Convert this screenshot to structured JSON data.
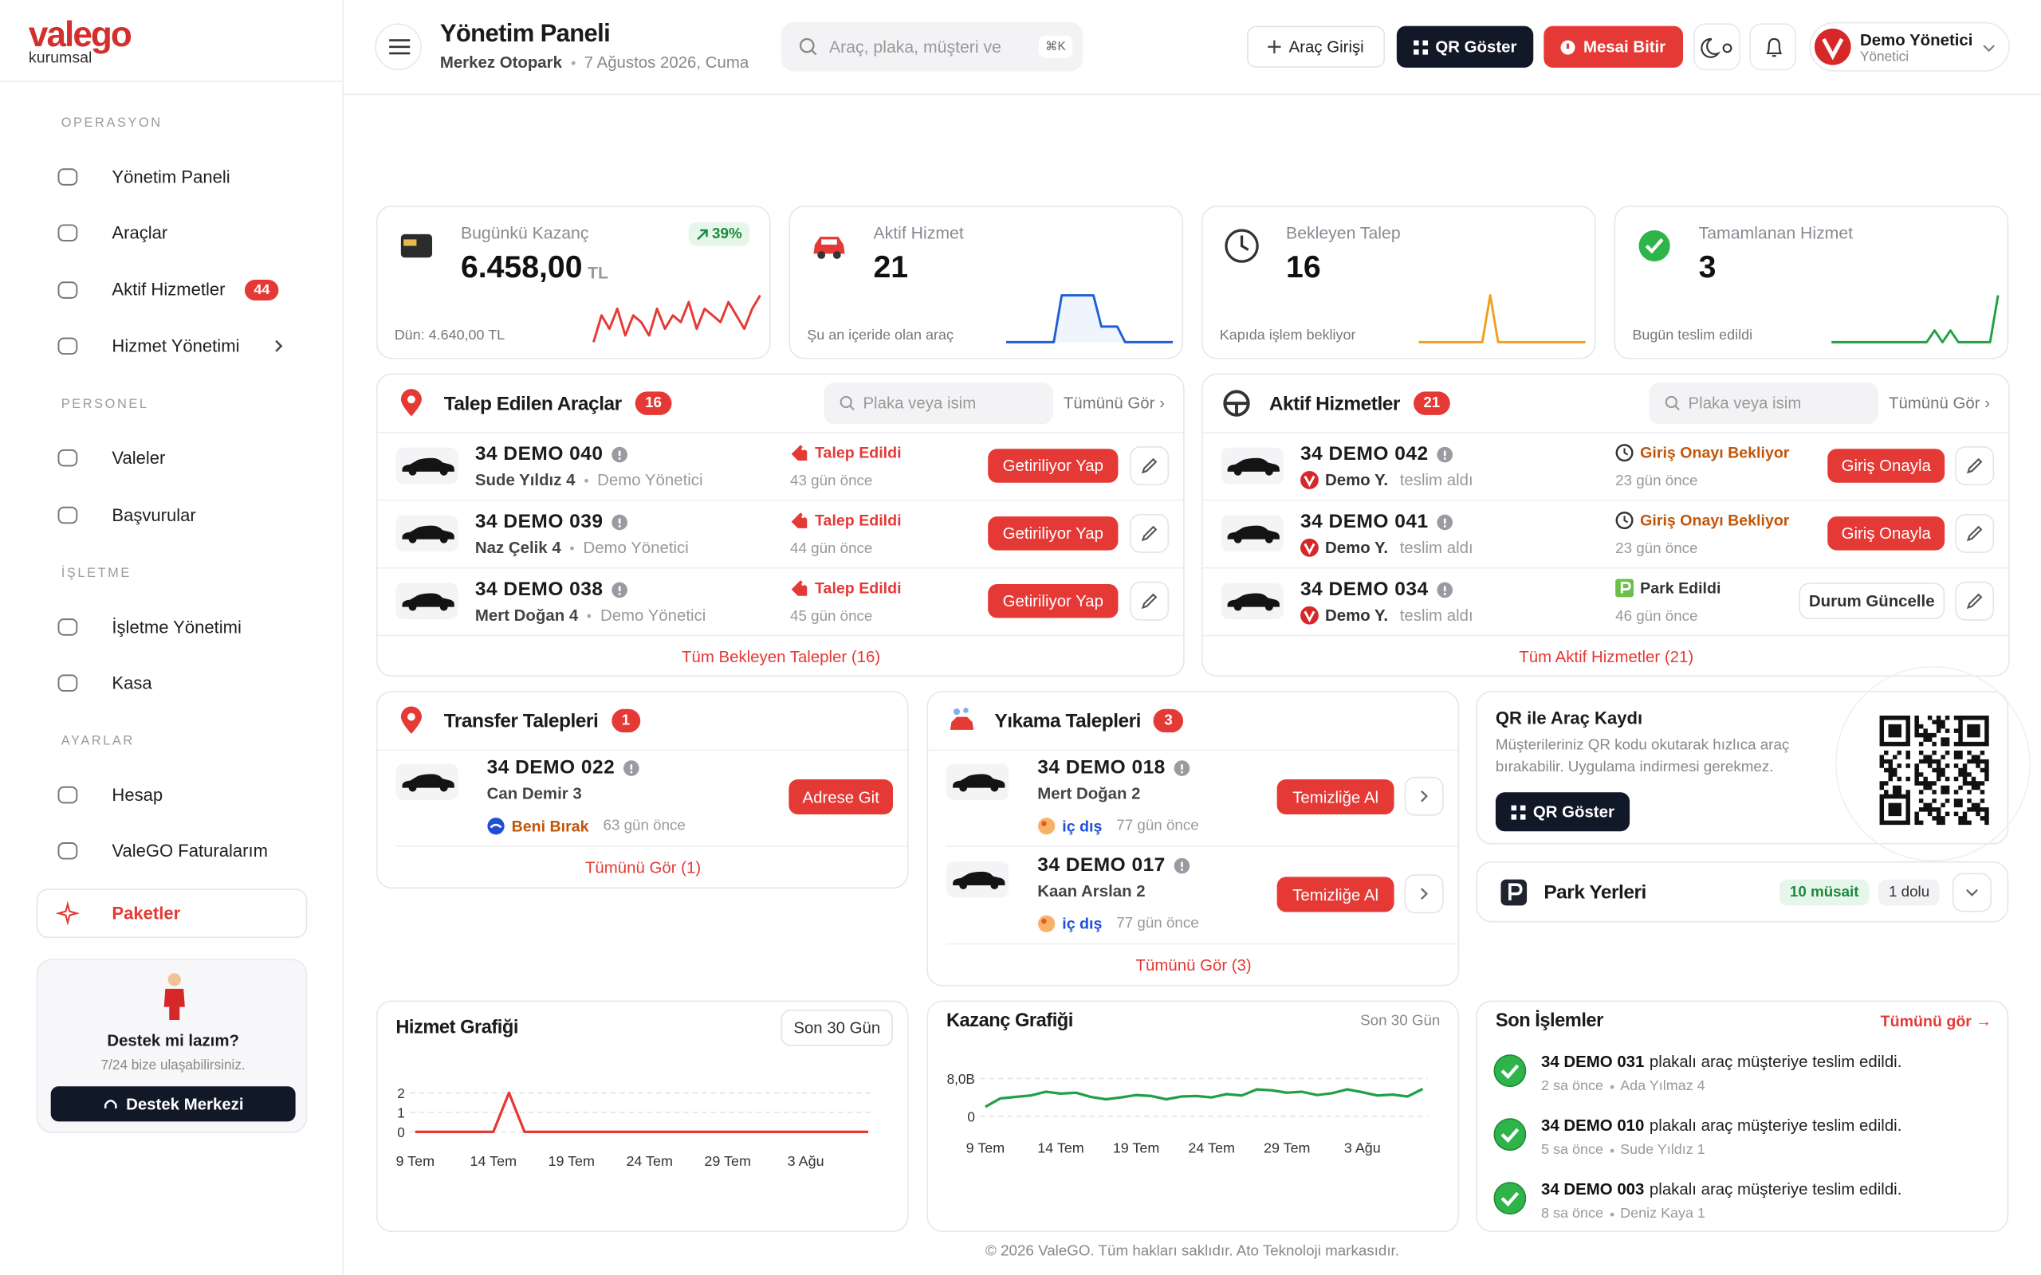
{
  "brand": {
    "name": "valego",
    "tagline": "kurumsal"
  },
  "sidebar": {
    "sections": [
      {
        "title": "OPERASYON",
        "items": [
          {
            "label": "Yönetim Paneli"
          },
          {
            "label": "Araçlar"
          },
          {
            "label": "Aktif Hizmetler",
            "badge": 44
          },
          {
            "label": "Hizmet Yönetimi"
          }
        ]
      },
      {
        "title": "PERSONEL",
        "items": [
          {
            "label": "Valeler"
          },
          {
            "label": "Başvurular"
          }
        ]
      },
      {
        "title": "İŞLETME",
        "items": [
          {
            "label": "İşletme Yönetimi"
          },
          {
            "label": "Kasa"
          }
        ]
      },
      {
        "title": "AYARLAR",
        "items": [
          {
            "label": "Hesap"
          },
          {
            "label": "ValeGO Faturalarım"
          }
        ]
      }
    ],
    "featured": "Paketler",
    "support": {
      "title": "Destek mi lazım?",
      "text": "7/24 bize ulaşabilirsiniz.",
      "button": "Destek Merkezi"
    }
  },
  "header": {
    "title": "Yönetim Paneli",
    "location": "Merkez Otopark",
    "date": "7 Ağustos 2026, Cuma",
    "search": "Araç, plaka, müşteri ve",
    "shortcut": "⌘K",
    "buttons": [
      "Araç Girişi",
      "QR Göster",
      "Mesai Bitir"
    ],
    "user": {
      "name": "Demo Yönetici",
      "role": "Yönetici"
    }
  },
  "kpis": [
    {
      "label": "Bugünkü Kazanç",
      "value": "6.458,00",
      "unit": "TL",
      "change": "39%",
      "note": "Dün: 4.640,00 TL",
      "color": "#e53935",
      "spark": [
        2,
        6,
        4,
        7,
        3,
        6,
        5,
        3,
        7,
        4,
        6,
        5,
        8,
        4,
        7,
        6,
        5,
        8,
        6,
        4,
        7,
        9
      ]
    },
    {
      "label": "Aktif Hizmet",
      "value": 21,
      "note": "Şu an içeride olan araç",
      "color": "#1e5fd6",
      "spark": [
        0,
        0,
        0,
        0,
        0,
        0,
        0,
        3,
        3,
        3,
        3,
        3,
        1,
        1,
        1,
        0,
        0,
        0,
        0,
        0,
        0,
        0
      ]
    },
    {
      "label": "Bekleyen Talep",
      "value": 16,
      "note": "Kapıda işlem bekliyor",
      "color": "#f0a020",
      "spark": [
        0,
        0,
        0,
        0,
        0,
        0,
        0,
        0,
        0,
        4,
        0,
        0,
        0,
        0,
        0,
        0,
        0,
        0,
        0,
        0,
        0,
        0
      ]
    },
    {
      "label": "Tamamlanan Hizmet",
      "value": 3,
      "note": "Bugün teslim edildi",
      "color": "#22a045",
      "spark": [
        0,
        0,
        0,
        0,
        0,
        0,
        0,
        0,
        0,
        0,
        0,
        0,
        0,
        1,
        0,
        1,
        0,
        0,
        0,
        0,
        0,
        4
      ]
    }
  ],
  "requested": {
    "title": "Talep Edilen Araçlar",
    "count": 16,
    "search": "Plaka veya isim",
    "see_all": "Tümünü Gör ›",
    "rows": [
      {
        "plate": "34 DEMO 040",
        "customer": "Sude Yıldız 4",
        "by": "Demo Yönetici",
        "status": "Talep Edildi",
        "age": "43 gün önce",
        "action": "Getiriliyor Yap"
      },
      {
        "plate": "34 DEMO 039",
        "customer": "Naz Çelik 4",
        "by": "Demo Yönetici",
        "status": "Talep Edildi",
        "age": "44 gün önce",
        "action": "Getiriliyor Yap"
      },
      {
        "plate": "34 DEMO 038",
        "customer": "Mert Doğan 4",
        "by": "Demo Yönetici",
        "status": "Talep Edildi",
        "age": "45 gün önce",
        "action": "Getiriliyor Yap"
      }
    ],
    "footer": "Tüm Bekleyen Talepler (16)"
  },
  "active": {
    "title": "Aktif Hizmetler",
    "count": 21,
    "search": "Plaka veya isim",
    "see_all": "Tümünü Gör ›",
    "rows": [
      {
        "plate": "34 DEMO 042",
        "valet": "Demo Y.",
        "note": "teslim aldı",
        "status": "Giriş Onayı Bekliyor",
        "age": "23 gün önce",
        "action": "Giriş Onayla"
      },
      {
        "plate": "34 DEMO 041",
        "valet": "Demo Y.",
        "note": "teslim aldı",
        "status": "Giriş Onayı Bekliyor",
        "age": "23 gün önce",
        "action": "Giriş Onayla"
      },
      {
        "plate": "34 DEMO 034",
        "valet": "Demo Y.",
        "note": "teslim aldı",
        "status": "Park Edildi",
        "age": "46 gün önce",
        "action": "Durum Güncelle"
      }
    ],
    "footer": "Tüm Aktif Hizmetler (21)"
  },
  "transfer": {
    "title": "Transfer Talepleri",
    "count": 1,
    "rows": [
      {
        "plate": "34 DEMO 022",
        "customer": "Can Demir 3",
        "tag": "Beni Bırak",
        "age": "63 gün önce",
        "action": "Adrese Git"
      }
    ],
    "footer": "Tümünü Gör (1)"
  },
  "wash": {
    "title": "Yıkama Talepleri",
    "count": 3,
    "rows": [
      {
        "plate": "34 DEMO 018",
        "customer": "Mert Doğan 2",
        "tag": "iç dış",
        "age": "77 gün önce",
        "action": "Temizliğe Al"
      },
      {
        "plate": "34 DEMO 017",
        "customer": "Kaan Arslan 2",
        "tag": "iç dış",
        "age": "77 gün önce",
        "action": "Temizliğe Al"
      }
    ],
    "footer": "Tümünü Gör (3)"
  },
  "qr": {
    "title": "QR ile Araç Kaydı",
    "text": "Müşterileriniz QR kodu okutarak hızlıca araç bırakabilir. Uygulama indirmesi gerekmez.",
    "button": "QR Göster"
  },
  "parking": {
    "title": "Park Yerleri",
    "available": "10 müsait",
    "occupied": "1 dolu"
  },
  "service_chart": {
    "type": "line",
    "title": "Hizmet Grafiği",
    "range": "Son 30 Gün",
    "color": "#e53935",
    "categories": [
      "9 Tem",
      null,
      null,
      null,
      null,
      "14 Tem",
      null,
      null,
      null,
      null,
      "19 Tem",
      null,
      null,
      null,
      null,
      "24 Tem",
      null,
      null,
      null,
      null,
      "29 Tem",
      null,
      null,
      null,
      null,
      "3 Ağu",
      null,
      null,
      null,
      null
    ],
    "values": [
      0,
      0,
      0,
      0,
      0,
      0,
      2,
      0,
      0,
      0,
      0,
      0,
      0,
      0,
      0,
      0,
      0,
      0,
      0,
      0,
      0,
      0,
      0,
      0,
      0,
      0,
      0,
      0,
      0,
      0
    ],
    "ylim": [
      0,
      2
    ],
    "yticks": [
      0,
      1,
      2
    ]
  },
  "earnings_chart": {
    "type": "line",
    "title": "Kazanç Grafiği",
    "range": "Son 30 Gün",
    "color": "#22a045",
    "categories": [
      "9 Tem",
      null,
      null,
      null,
      null,
      "14 Tem",
      null,
      null,
      null,
      null,
      "19 Tem",
      null,
      null,
      null,
      null,
      "24 Tem",
      null,
      null,
      null,
      null,
      "29 Tem",
      null,
      null,
      null,
      null,
      "3 Ağu",
      null,
      null,
      null,
      null
    ],
    "values": [
      2000,
      3800,
      4100,
      4400,
      5200,
      4800,
      5000,
      4100,
      3600,
      4000,
      4500,
      4300,
      3600,
      4200,
      4300,
      4000,
      4700,
      4400,
      5700,
      5500,
      5000,
      5200,
      4500,
      4900,
      5700,
      5100,
      4400,
      4600,
      4200,
      5800
    ],
    "ylim": [
      0,
      8000
    ],
    "yticks": [
      0,
      {
        "value": 8000,
        "label": "8,0B"
      }
    ]
  },
  "recent": {
    "title": "Son İşlemler",
    "see_all": "Tümünü gör →",
    "items": [
      {
        "plate": "34 DEMO 031",
        "text": "plakalı araç müşteriye teslim edildi.",
        "time": "2 sa önce",
        "person": "Ada Yılmaz 4"
      },
      {
        "plate": "34 DEMO 010",
        "text": "plakalı araç müşteriye teslim edildi.",
        "time": "5 sa önce",
        "person": "Sude Yıldız 1"
      },
      {
        "plate": "34 DEMO 003",
        "text": "plakalı araç müşteriye teslim edildi.",
        "time": "8 sa önce",
        "person": "Deniz Kaya 1"
      }
    ]
  },
  "footer": "© 2026 ValeGO. Tüm hakları saklıdır. Ato Teknoloji markasıdır."
}
